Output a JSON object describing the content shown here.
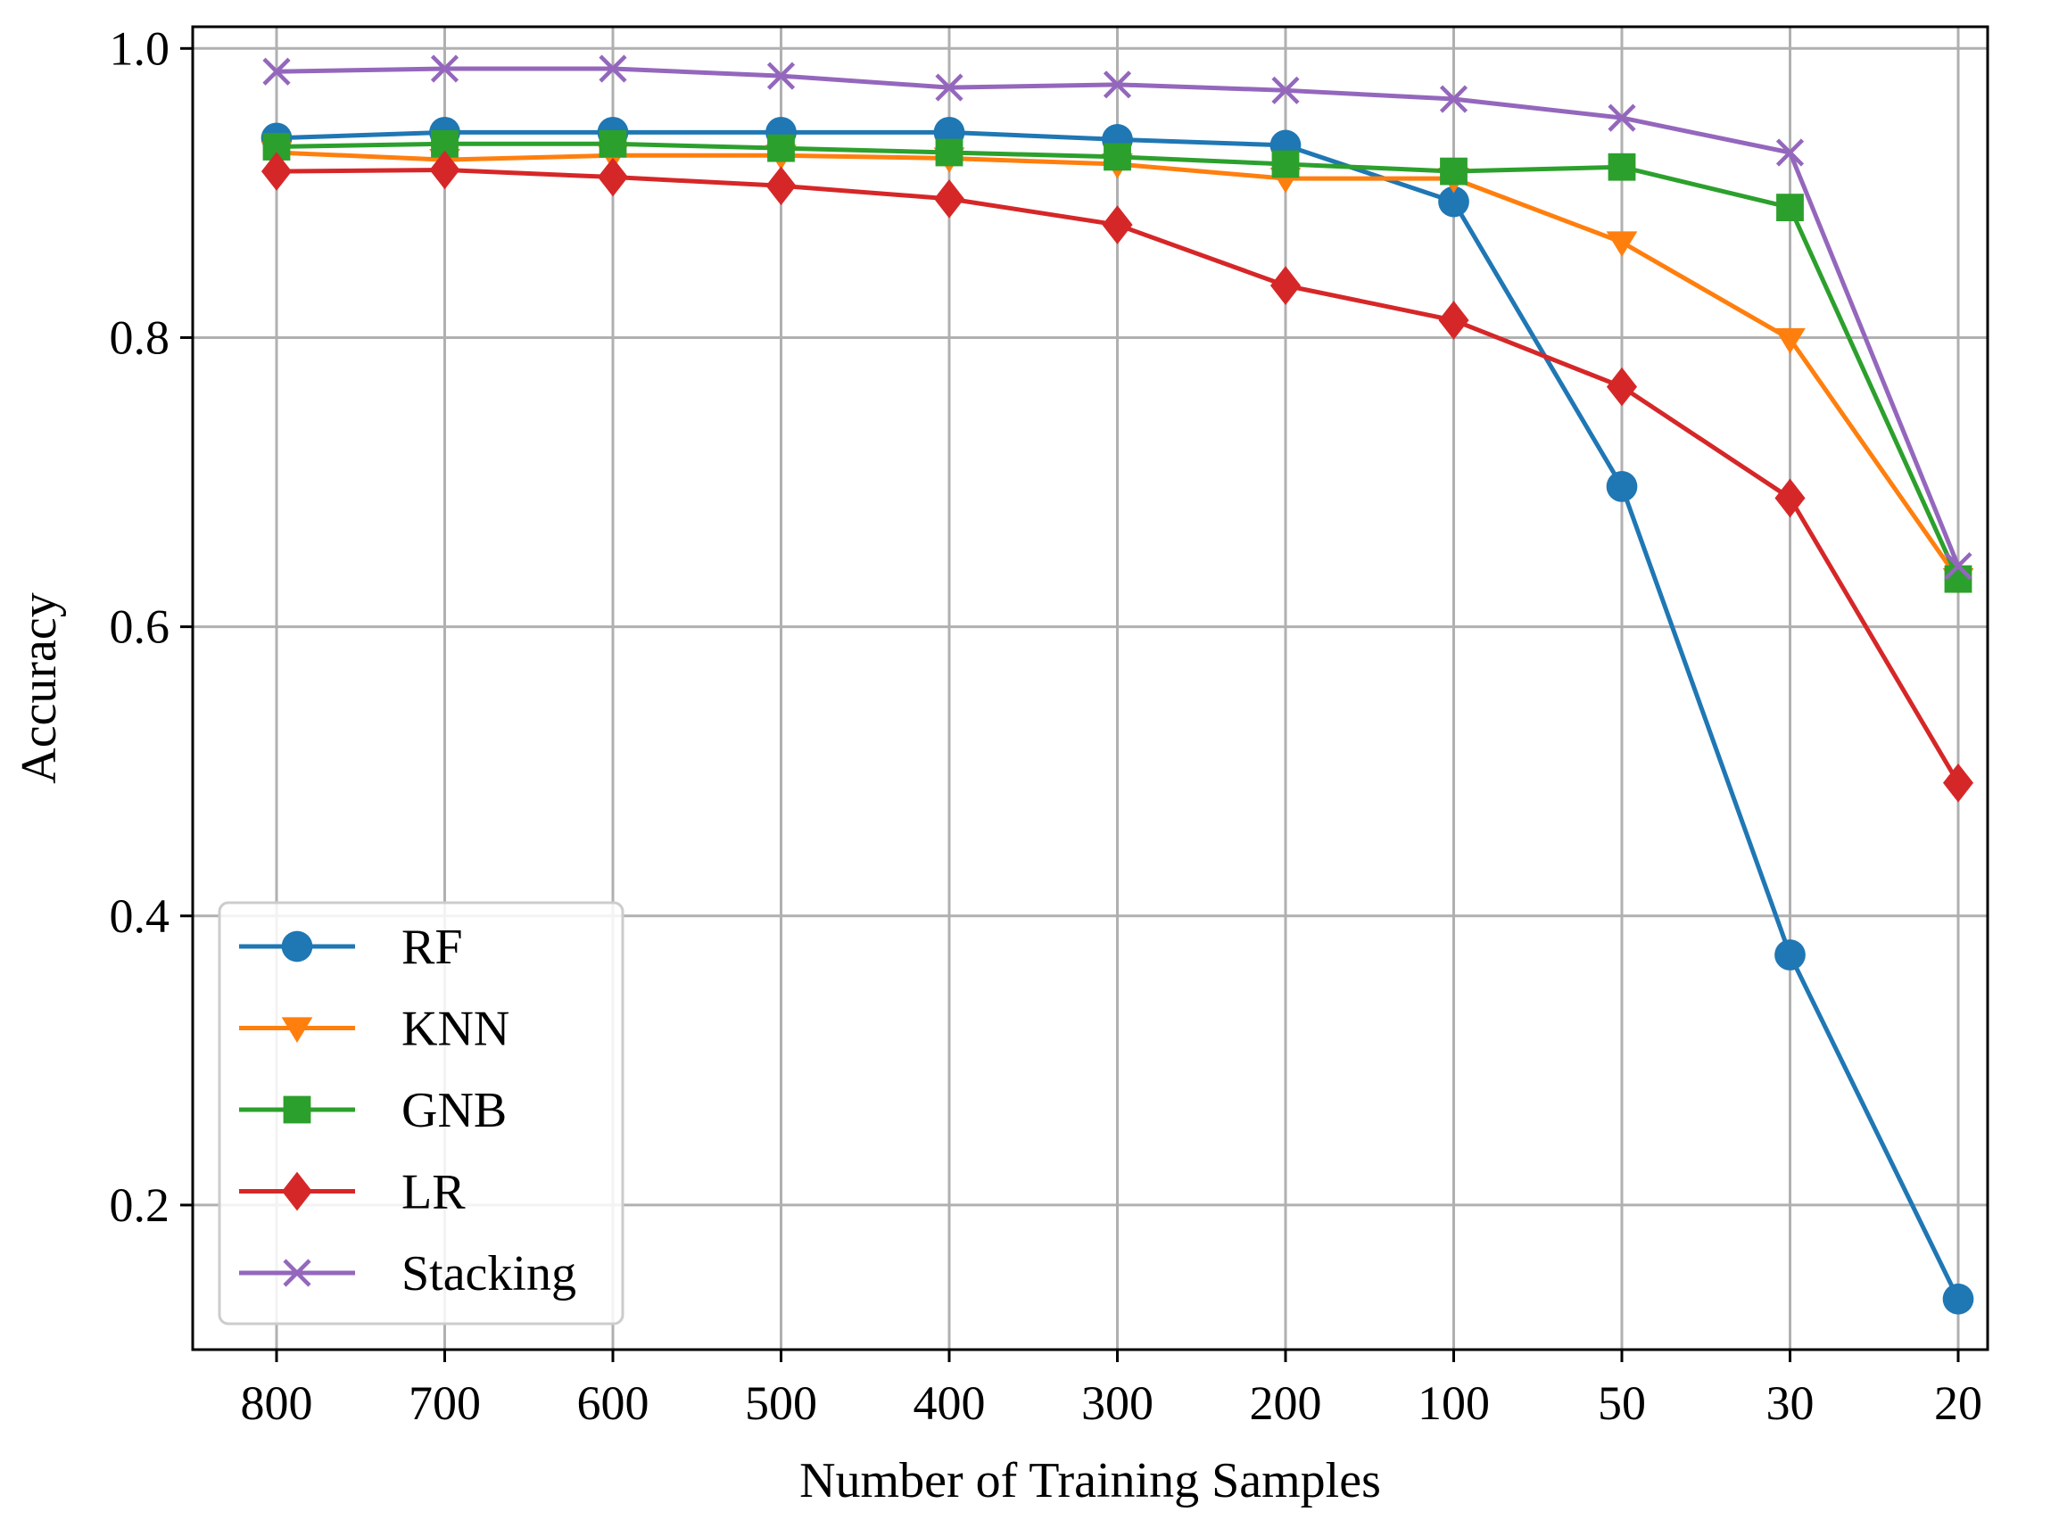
{
  "chart_data": {
    "type": "line",
    "title": "",
    "xlabel": "Number of Training Samples",
    "ylabel": "Accuracy",
    "categories": [
      "800",
      "700",
      "600",
      "500",
      "400",
      "300",
      "200",
      "100",
      "50",
      "30",
      "20"
    ],
    "ylim": [
      0.1,
      1.015
    ],
    "yticks": [
      0.2,
      0.4,
      0.6,
      0.8,
      1.0
    ],
    "ytick_labels": [
      "0.2",
      "0.4",
      "0.6",
      "0.8",
      "1.0"
    ],
    "grid": true,
    "legend_position": "lower-left",
    "series": [
      {
        "name": "RF",
        "color": "#1f77b4",
        "marker": "circle",
        "values": [
          0.938,
          0.942,
          0.942,
          0.942,
          0.942,
          0.937,
          0.933,
          0.894,
          0.697,
          0.373,
          0.135
        ]
      },
      {
        "name": "KNN",
        "color": "#ff7f0e",
        "marker": "triangle-down",
        "values": [
          0.928,
          0.923,
          0.926,
          0.926,
          0.924,
          0.92,
          0.91,
          0.91,
          0.866,
          0.799,
          0.633
        ]
      },
      {
        "name": "GNB",
        "color": "#2ca02c",
        "marker": "square",
        "values": [
          0.932,
          0.934,
          0.934,
          0.931,
          0.928,
          0.925,
          0.92,
          0.915,
          0.918,
          0.89,
          0.633
        ]
      },
      {
        "name": "LR",
        "color": "#d62728",
        "marker": "diamond",
        "values": [
          0.915,
          0.916,
          0.911,
          0.905,
          0.896,
          0.878,
          0.836,
          0.812,
          0.766,
          0.689,
          0.492
        ]
      },
      {
        "name": "Stacking",
        "color": "#9467bd",
        "marker": "x",
        "values": [
          0.984,
          0.986,
          0.986,
          0.981,
          0.973,
          0.975,
          0.971,
          0.965,
          0.952,
          0.928,
          0.642
        ]
      }
    ]
  }
}
